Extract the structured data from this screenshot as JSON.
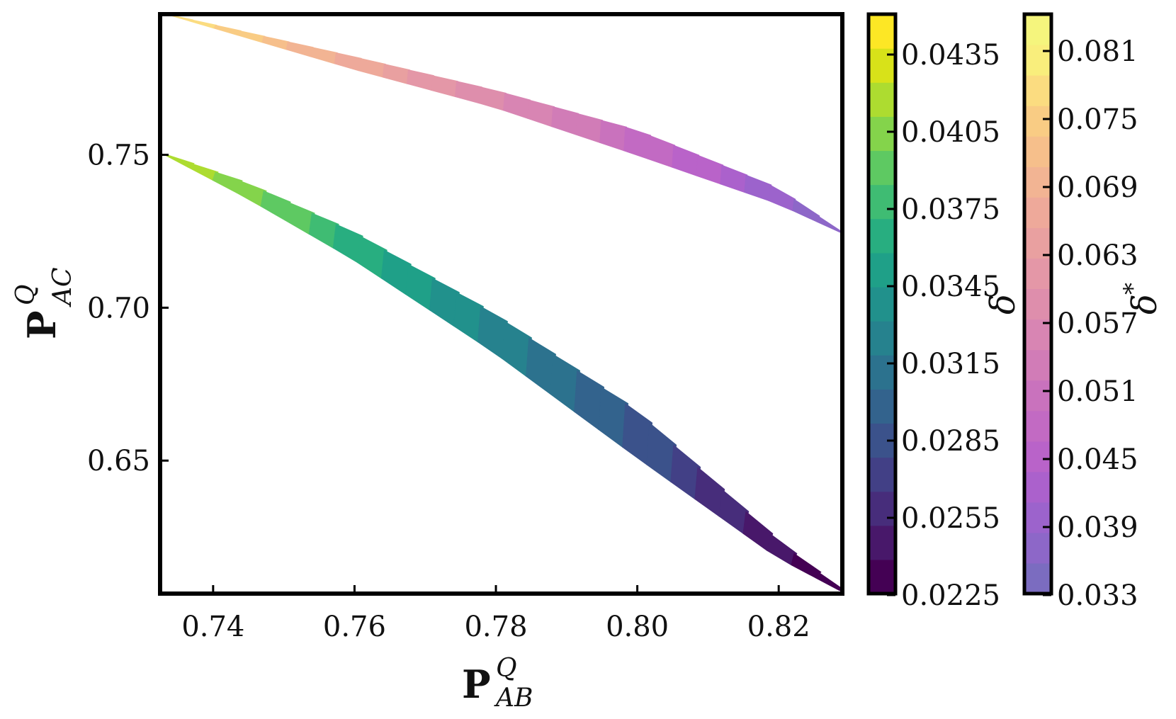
{
  "chart_data": {
    "type": "contour",
    "xlabel": {
      "base": "P",
      "sup": "Q",
      "sub": "AB"
    },
    "ylabel": {
      "base": "P",
      "sup": "Q",
      "sub": "AC"
    },
    "xlim": [
      0.7325,
      0.829
    ],
    "ylim": [
      0.6065,
      0.796
    ],
    "xticks": [
      0.74,
      0.76,
      0.78,
      0.8,
      0.82
    ],
    "xtick_labels": [
      "0.74",
      "0.76",
      "0.78",
      "0.80",
      "0.82"
    ],
    "yticks": [
      0.65,
      0.7,
      0.75
    ],
    "ytick_labels": [
      "0.65",
      "0.70",
      "0.75"
    ],
    "grid": false,
    "series": [
      {
        "name": "δ",
        "colormap": "viridis",
        "levels_range": [
          0.0225,
          0.045
        ],
        "level_step": 0.0015,
        "value_range_in_region": [
          0.0225,
          0.045
        ],
        "region": {
          "x_range": [
            0.7335,
            0.829
          ],
          "upper_edge": [
            [
              0.7335,
              0.75
            ],
            [
              0.745,
              0.7405
            ],
            [
              0.76,
              0.7245
            ],
            [
              0.78,
              0.6975
            ],
            [
              0.8,
              0.666
            ],
            [
              0.82,
              0.6235
            ],
            [
              0.829,
              0.6075
            ]
          ],
          "lower_edge": [
            [
              0.7335,
              0.75
            ],
            [
              0.745,
              0.736
            ],
            [
              0.76,
              0.716
            ],
            [
              0.78,
              0.6855
            ],
            [
              0.8,
              0.6515
            ],
            [
              0.82,
              0.6185
            ],
            [
              0.829,
              0.6075
            ]
          ]
        }
      },
      {
        "name": "δ*",
        "colormap": "plasma (light)",
        "levels_range": [
          0.033,
          0.084
        ],
        "level_step": 0.003,
        "value_range_in_region": [
          0.036,
          0.084
        ],
        "region": {
          "x_range": [
            0.7335,
            0.829
          ],
          "upper_edge": [
            [
              0.7335,
              0.796
            ],
            [
              0.76,
              0.782
            ],
            [
              0.78,
              0.771
            ],
            [
              0.8,
              0.758
            ],
            [
              0.82,
              0.739
            ],
            [
              0.829,
              0.7245
            ]
          ],
          "lower_edge": [
            [
              0.7335,
              0.796
            ],
            [
              0.76,
              0.778
            ],
            [
              0.78,
              0.7655
            ],
            [
              0.8,
              0.75
            ],
            [
              0.82,
              0.734
            ],
            [
              0.829,
              0.7245
            ]
          ]
        }
      }
    ],
    "colorbars": [
      {
        "title": "δ",
        "ticks": [
          "0.0435",
          "0.0405",
          "0.0375",
          "0.0345",
          "0.0315",
          "0.0285",
          "0.0255",
          "0.0225"
        ],
        "range": [
          0.0225,
          0.045
        ],
        "colors": [
          "#440154",
          "#48186a",
          "#472d7b",
          "#424086",
          "#3b528b",
          "#33638d",
          "#2c728e",
          "#26828e",
          "#21918c",
          "#1fa088",
          "#28ae80",
          "#3fbc73",
          "#5ec962",
          "#84d44b",
          "#addc30",
          "#d8e219",
          "#fde725"
        ]
      },
      {
        "title": "δ*",
        "ticks": [
          "0.081",
          "0.075",
          "0.069",
          "0.063",
          "0.057",
          "0.051",
          "0.045",
          "0.039",
          "0.033"
        ],
        "range": [
          0.033,
          0.084
        ],
        "colors": [
          "#7b6cc0",
          "#8d67c8",
          "#9c63cc",
          "#ab61cc",
          "#b963c9",
          "#c26ac3",
          "#c972bd",
          "#d17cb7",
          "#d885b3",
          "#de8eac",
          "#e497a7",
          "#e9a0a0",
          "#eea99a",
          "#f2b493",
          "#f6bf8b",
          "#f9cc84",
          "#fbdc80",
          "#f9ee7c",
          "#f5f57d"
        ]
      }
    ]
  }
}
